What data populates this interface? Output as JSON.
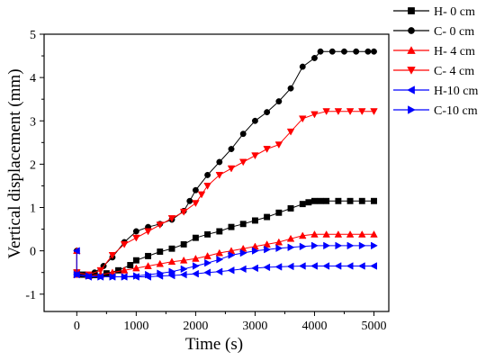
{
  "chart_data": {
    "type": "scatter",
    "xlabel": "Time (s)",
    "ylabel": "Vertical displacement (mm)",
    "xlim": [
      -550,
      5250
    ],
    "ylim": [
      -1.4,
      5
    ],
    "x_ticks": [
      0,
      1000,
      2000,
      3000,
      4000,
      5000
    ],
    "y_ticks": [
      -1,
      0,
      1,
      2,
      3,
      4,
      5
    ],
    "x_tick_labels": [
      "0",
      "1000",
      "2000",
      "3000",
      "4000",
      "5000"
    ],
    "y_tick_labels": [
      "-1",
      "0",
      "1",
      "2",
      "3",
      "4",
      "5"
    ],
    "grid": false,
    "legend_position": "top-right outside",
    "series": [
      {
        "name": "H- 0 cm",
        "color": "#000000",
        "marker": "square",
        "points": [
          [
            0,
            -0.5
          ],
          [
            100,
            -0.55
          ],
          [
            300,
            -0.56
          ],
          [
            500,
            -0.52
          ],
          [
            700,
            -0.45
          ],
          [
            900,
            -0.33
          ],
          [
            1000,
            -0.22
          ],
          [
            1200,
            -0.12
          ],
          [
            1400,
            -0.02
          ],
          [
            1600,
            0.05
          ],
          [
            1800,
            0.15
          ],
          [
            2000,
            0.3
          ],
          [
            2200,
            0.38
          ],
          [
            2400,
            0.45
          ],
          [
            2600,
            0.55
          ],
          [
            2800,
            0.62
          ],
          [
            3000,
            0.7
          ],
          [
            3200,
            0.78
          ],
          [
            3400,
            0.88
          ],
          [
            3600,
            0.98
          ],
          [
            3800,
            1.08
          ],
          [
            3900,
            1.12
          ],
          [
            4000,
            1.15
          ],
          [
            4100,
            1.15
          ],
          [
            4200,
            1.15
          ],
          [
            4400,
            1.15
          ],
          [
            4600,
            1.15
          ],
          [
            4800,
            1.15
          ],
          [
            5000,
            1.15
          ]
        ]
      },
      {
        "name": "C- 0 cm",
        "color": "#000000",
        "marker": "circle",
        "points": [
          [
            0,
            0
          ],
          [
            0,
            -0.5
          ],
          [
            150,
            -0.55
          ],
          [
            300,
            -0.5
          ],
          [
            450,
            -0.35
          ],
          [
            600,
            -0.15
          ],
          [
            800,
            0.2
          ],
          [
            1000,
            0.45
          ],
          [
            1200,
            0.55
          ],
          [
            1400,
            0.62
          ],
          [
            1600,
            0.72
          ],
          [
            1800,
            0.92
          ],
          [
            1900,
            1.15
          ],
          [
            2000,
            1.4
          ],
          [
            2200,
            1.75
          ],
          [
            2400,
            2.05
          ],
          [
            2600,
            2.35
          ],
          [
            2800,
            2.7
          ],
          [
            3000,
            3.0
          ],
          [
            3200,
            3.2
          ],
          [
            3400,
            3.45
          ],
          [
            3600,
            3.75
          ],
          [
            3800,
            4.25
          ],
          [
            4000,
            4.45
          ],
          [
            4100,
            4.6
          ],
          [
            4300,
            4.6
          ],
          [
            4500,
            4.6
          ],
          [
            4700,
            4.6
          ],
          [
            4900,
            4.6
          ],
          [
            5000,
            4.6
          ]
        ]
      },
      {
        "name": "H- 4 cm",
        "color": "#ff0000",
        "marker": "triangle-up",
        "points": [
          [
            0,
            0
          ],
          [
            0,
            -0.55
          ],
          [
            200,
            -0.58
          ],
          [
            400,
            -0.55
          ],
          [
            600,
            -0.5
          ],
          [
            800,
            -0.45
          ],
          [
            1000,
            -0.4
          ],
          [
            1200,
            -0.35
          ],
          [
            1400,
            -0.3
          ],
          [
            1600,
            -0.25
          ],
          [
            1800,
            -0.22
          ],
          [
            2000,
            -0.18
          ],
          [
            2200,
            -0.12
          ],
          [
            2400,
            -0.05
          ],
          [
            2600,
            0.0
          ],
          [
            2800,
            0.05
          ],
          [
            3000,
            0.1
          ],
          [
            3200,
            0.15
          ],
          [
            3400,
            0.2
          ],
          [
            3600,
            0.28
          ],
          [
            3800,
            0.35
          ],
          [
            4000,
            0.38
          ],
          [
            4200,
            0.38
          ],
          [
            4400,
            0.38
          ],
          [
            4600,
            0.38
          ],
          [
            4800,
            0.38
          ],
          [
            5000,
            0.38
          ]
        ]
      },
      {
        "name": "C- 4 cm",
        "color": "#ff0000",
        "marker": "triangle-down",
        "points": [
          [
            0,
            -0.5
          ],
          [
            200,
            -0.55
          ],
          [
            400,
            -0.45
          ],
          [
            600,
            -0.1
          ],
          [
            800,
            0.15
          ],
          [
            1000,
            0.3
          ],
          [
            1200,
            0.45
          ],
          [
            1400,
            0.6
          ],
          [
            1600,
            0.75
          ],
          [
            1800,
            0.9
          ],
          [
            2000,
            1.1
          ],
          [
            2100,
            1.3
          ],
          [
            2200,
            1.5
          ],
          [
            2400,
            1.75
          ],
          [
            2600,
            1.9
          ],
          [
            2800,
            2.05
          ],
          [
            3000,
            2.2
          ],
          [
            3200,
            2.35
          ],
          [
            3400,
            2.45
          ],
          [
            3600,
            2.75
          ],
          [
            3800,
            3.05
          ],
          [
            4000,
            3.15
          ],
          [
            4200,
            3.22
          ],
          [
            4400,
            3.22
          ],
          [
            4600,
            3.22
          ],
          [
            4800,
            3.22
          ],
          [
            5000,
            3.22
          ]
        ]
      },
      {
        "name": "H-10 cm",
        "color": "#0000ff",
        "marker": "triangle-left",
        "points": [
          [
            0,
            0
          ],
          [
            0,
            -0.55
          ],
          [
            200,
            -0.6
          ],
          [
            400,
            -0.6
          ],
          [
            600,
            -0.6
          ],
          [
            800,
            -0.6
          ],
          [
            1000,
            -0.6
          ],
          [
            1200,
            -0.6
          ],
          [
            1400,
            -0.58
          ],
          [
            1600,
            -0.57
          ],
          [
            1800,
            -0.55
          ],
          [
            2000,
            -0.53
          ],
          [
            2200,
            -0.5
          ],
          [
            2400,
            -0.48
          ],
          [
            2600,
            -0.45
          ],
          [
            2800,
            -0.42
          ],
          [
            3000,
            -0.4
          ],
          [
            3200,
            -0.38
          ],
          [
            3400,
            -0.37
          ],
          [
            3600,
            -0.36
          ],
          [
            3800,
            -0.35
          ],
          [
            4000,
            -0.35
          ],
          [
            4200,
            -0.35
          ],
          [
            4400,
            -0.35
          ],
          [
            4600,
            -0.35
          ],
          [
            4800,
            -0.35
          ],
          [
            5000,
            -0.35
          ]
        ]
      },
      {
        "name": "C-10 cm",
        "color": "#0000ff",
        "marker": "triangle-right",
        "points": [
          [
            0,
            -0.55
          ],
          [
            200,
            -0.58
          ],
          [
            400,
            -0.6
          ],
          [
            600,
            -0.6
          ],
          [
            800,
            -0.6
          ],
          [
            1000,
            -0.58
          ],
          [
            1200,
            -0.55
          ],
          [
            1400,
            -0.52
          ],
          [
            1600,
            -0.48
          ],
          [
            1800,
            -0.42
          ],
          [
            2000,
            -0.35
          ],
          [
            2200,
            -0.28
          ],
          [
            2400,
            -0.2
          ],
          [
            2600,
            -0.1
          ],
          [
            2800,
            -0.05
          ],
          [
            3000,
            0.0
          ],
          [
            3200,
            0.03
          ],
          [
            3400,
            0.06
          ],
          [
            3600,
            0.08
          ],
          [
            3800,
            0.1
          ],
          [
            4000,
            0.12
          ],
          [
            4200,
            0.12
          ],
          [
            4400,
            0.12
          ],
          [
            4600,
            0.12
          ],
          [
            4800,
            0.12
          ],
          [
            5000,
            0.12
          ]
        ]
      }
    ]
  }
}
